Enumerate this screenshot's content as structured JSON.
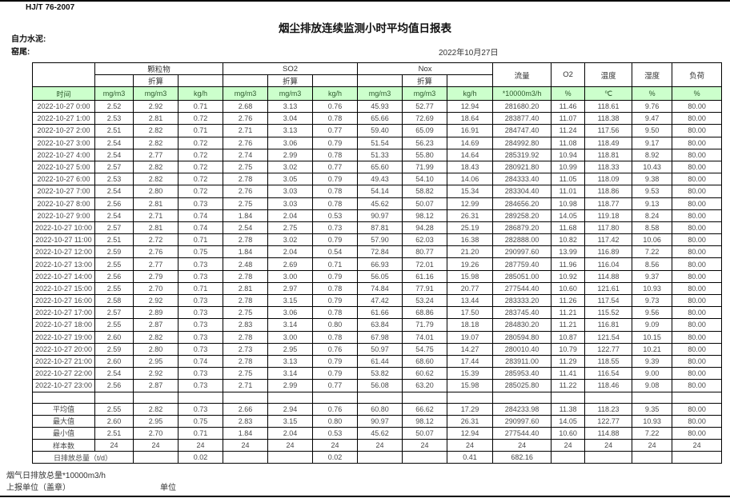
{
  "page": {
    "standard": "HJ/T 76-2007",
    "title": "烟尘排放连续监测小时平均值日报表",
    "company_label": "自力水泥:",
    "location_label": "窑尾:",
    "date": "2022年10月27日"
  },
  "table": {
    "time_header": "时间",
    "zhesuan": "折算",
    "groups": {
      "pm": "颗粒物",
      "so2": "SO2",
      "nox": "Nox",
      "flow": "流量",
      "o2": "O2",
      "temp": "温度",
      "humidity": "湿度",
      "load": "负荷"
    },
    "units": [
      "mg/m3",
      "mg/m3",
      "kg/h",
      "mg/m3",
      "mg/m3",
      "kg/h",
      "mg/m3",
      "mg/m3",
      "kg/h",
      "*10000m3/h",
      "%",
      "℃",
      "%",
      "%"
    ],
    "rows": [
      {
        "time": "2022-10-27 0:00",
        "values": [
          "2.52",
          "2.92",
          "0.71",
          "2.68",
          "3.13",
          "0.76",
          "45.93",
          "52.77",
          "12.94",
          "281680.20",
          "11.46",
          "118.61",
          "9.76",
          "80.00"
        ]
      },
      {
        "time": "2022-10-27 1:00",
        "values": [
          "2.53",
          "2.81",
          "0.72",
          "2.76",
          "3.04",
          "0.78",
          "65.66",
          "72.69",
          "18.64",
          "283877.40",
          "11.07",
          "118.38",
          "9.47",
          "80.00"
        ]
      },
      {
        "time": "2022-10-27 2:00",
        "values": [
          "2.51",
          "2.82",
          "0.71",
          "2.71",
          "3.13",
          "0.77",
          "59.40",
          "65.09",
          "16.91",
          "284747.40",
          "11.24",
          "117.56",
          "9.50",
          "80.00"
        ]
      },
      {
        "time": "2022-10-27 3:00",
        "values": [
          "2.54",
          "2.82",
          "0.72",
          "2.76",
          "3.06",
          "0.79",
          "51.54",
          "56.23",
          "14.69",
          "284992.80",
          "11.08",
          "118.49",
          "9.17",
          "80.00"
        ]
      },
      {
        "time": "2022-10-27 4:00",
        "values": [
          "2.54",
          "2.77",
          "0.72",
          "2.74",
          "2.99",
          "0.78",
          "51.33",
          "55.80",
          "14.64",
          "285319.92",
          "10.94",
          "118.81",
          "8.92",
          "80.00"
        ]
      },
      {
        "time": "2022-10-27 5:00",
        "values": [
          "2.57",
          "2.82",
          "0.72",
          "2.75",
          "3.02",
          "0.77",
          "65.60",
          "71.99",
          "18.43",
          "280921.80",
          "10.99",
          "118.33",
          "10.43",
          "80.00"
        ]
      },
      {
        "time": "2022-10-27 6:00",
        "values": [
          "2.53",
          "2.82",
          "0.72",
          "2.78",
          "3.05",
          "0.79",
          "49.43",
          "54.10",
          "14.06",
          "284333.40",
          "11.05",
          "118.09",
          "9.38",
          "80.00"
        ]
      },
      {
        "time": "2022-10-27 7:00",
        "values": [
          "2.54",
          "2.80",
          "0.72",
          "2.76",
          "3.03",
          "0.78",
          "54.14",
          "58.82",
          "15.34",
          "283304.40",
          "11.01",
          "118.86",
          "9.53",
          "80.00"
        ]
      },
      {
        "time": "2022-10-27 8:00",
        "values": [
          "2.56",
          "2.81",
          "0.73",
          "2.75",
          "3.03",
          "0.78",
          "45.62",
          "50.07",
          "12.99",
          "284656.20",
          "10.98",
          "118.77",
          "9.13",
          "80.00"
        ]
      },
      {
        "time": "2022-10-27 9:00",
        "values": [
          "2.54",
          "2.71",
          "0.74",
          "1.84",
          "2.04",
          "0.53",
          "90.97",
          "98.12",
          "26.31",
          "289258.20",
          "14.05",
          "119.18",
          "8.24",
          "80.00"
        ]
      },
      {
        "time": "2022-10-27 10:00",
        "values": [
          "2.57",
          "2.81",
          "0.74",
          "2.54",
          "2.75",
          "0.73",
          "87.81",
          "94.28",
          "25.19",
          "286879.20",
          "11.68",
          "117.80",
          "8.58",
          "80.00"
        ]
      },
      {
        "time": "2022-10-27 11:00",
        "values": [
          "2.51",
          "2.72",
          "0.71",
          "2.78",
          "3.02",
          "0.79",
          "57.90",
          "62.03",
          "16.38",
          "282888.00",
          "10.82",
          "117.42",
          "10.06",
          "80.00"
        ]
      },
      {
        "time": "2022-10-27 12:00",
        "values": [
          "2.59",
          "2.76",
          "0.75",
          "1.84",
          "2.04",
          "0.54",
          "72.84",
          "80.77",
          "21.20",
          "290997.60",
          "13.99",
          "116.89",
          "7.22",
          "80.00"
        ]
      },
      {
        "time": "2022-10-27 13:00",
        "values": [
          "2.55",
          "2.77",
          "0.73",
          "2.48",
          "2.69",
          "0.71",
          "66.93",
          "72.01",
          "19.26",
          "287759.40",
          "11.96",
          "116.04",
          "8.56",
          "80.00"
        ]
      },
      {
        "time": "2022-10-27 14:00",
        "values": [
          "2.56",
          "2.79",
          "0.73",
          "2.78",
          "3.00",
          "0.79",
          "56.05",
          "61.16",
          "15.98",
          "285051.00",
          "10.92",
          "114.88",
          "9.37",
          "80.00"
        ]
      },
      {
        "time": "2022-10-27 15:00",
        "values": [
          "2.55",
          "2.70",
          "0.71",
          "2.81",
          "2.97",
          "0.78",
          "74.84",
          "77.91",
          "20.77",
          "277544.40",
          "10.60",
          "121.61",
          "10.93",
          "80.00"
        ]
      },
      {
        "time": "2022-10-27 16:00",
        "values": [
          "2.58",
          "2.92",
          "0.73",
          "2.78",
          "3.15",
          "0.79",
          "47.42",
          "53.24",
          "13.44",
          "283333.20",
          "11.26",
          "117.54",
          "9.73",
          "80.00"
        ]
      },
      {
        "time": "2022-10-27 17:00",
        "values": [
          "2.57",
          "2.89",
          "0.73",
          "2.75",
          "3.06",
          "0.78",
          "61.66",
          "68.86",
          "17.50",
          "283745.40",
          "11.21",
          "115.52",
          "9.56",
          "80.00"
        ]
      },
      {
        "time": "2022-10-27 18:00",
        "values": [
          "2.55",
          "2.87",
          "0.73",
          "2.83",
          "3.14",
          "0.80",
          "63.84",
          "71.79",
          "18.18",
          "284830.20",
          "11.21",
          "116.81",
          "9.09",
          "80.00"
        ]
      },
      {
        "time": "2022-10-27 19:00",
        "values": [
          "2.60",
          "2.82",
          "0.73",
          "2.78",
          "3.00",
          "0.78",
          "67.98",
          "74.01",
          "19.07",
          "280594.80",
          "10.87",
          "121.54",
          "10.15",
          "80.00"
        ]
      },
      {
        "time": "2022-10-27 20:00",
        "values": [
          "2.59",
          "2.80",
          "0.73",
          "2.73",
          "2.95",
          "0.76",
          "50.97",
          "54.75",
          "14.27",
          "280010.40",
          "10.79",
          "122.77",
          "10.21",
          "80.00"
        ]
      },
      {
        "time": "2022-10-27 21:00",
        "values": [
          "2.60",
          "2.95",
          "0.74",
          "2.78",
          "3.13",
          "0.79",
          "61.44",
          "68.60",
          "17.44",
          "283911.00",
          "11.29",
          "118.55",
          "9.39",
          "80.00"
        ]
      },
      {
        "time": "2022-10-27 22:00",
        "values": [
          "2.54",
          "2.92",
          "0.73",
          "2.75",
          "3.14",
          "0.79",
          "53.82",
          "60.62",
          "15.39",
          "285953.40",
          "11.41",
          "116.54",
          "9.00",
          "80.00"
        ]
      },
      {
        "time": "2022-10-27 23:00",
        "values": [
          "2.56",
          "2.87",
          "0.73",
          "2.71",
          "2.99",
          "0.77",
          "56.08",
          "63.20",
          "15.98",
          "285025.80",
          "11.22",
          "118.46",
          "9.08",
          "80.00"
        ]
      }
    ],
    "summary": [
      {
        "label": "平均值",
        "values": [
          "2.55",
          "2.82",
          "0.73",
          "2.66",
          "2.94",
          "0.76",
          "60.80",
          "66.62",
          "17.29",
          "284233.98",
          "11.38",
          "118.23",
          "9.35",
          "80.00"
        ]
      },
      {
        "label": "最大值",
        "values": [
          "2.60",
          "2.95",
          "0.75",
          "2.83",
          "3.15",
          "0.80",
          "90.97",
          "98.12",
          "26.31",
          "290997.60",
          "14.05",
          "122.77",
          "10.93",
          "80.00"
        ]
      },
      {
        "label": "最小值",
        "values": [
          "2.51",
          "2.70",
          "0.71",
          "1.84",
          "2.04",
          "0.53",
          "45.62",
          "50.07",
          "12.94",
          "277544.40",
          "10.60",
          "114.88",
          "7.22",
          "80.00"
        ]
      },
      {
        "label": "样本数",
        "values": [
          "24",
          "24",
          "24",
          "24",
          "24",
          "24",
          "24",
          "24",
          "24",
          "24",
          "24",
          "24",
          "24",
          "24"
        ]
      }
    ],
    "daily_total": {
      "label": "日排放总量（t/d）",
      "cells": [
        "",
        "0.02",
        "",
        "",
        "0.02",
        "",
        "",
        "0.41",
        "682.16",
        "",
        "",
        "",
        ""
      ]
    }
  },
  "footer": {
    "flow_note": "烟气日排放总量*10000m3/h",
    "report_unit_label": "上报单位（盖章）",
    "unit_label": "单位"
  }
}
